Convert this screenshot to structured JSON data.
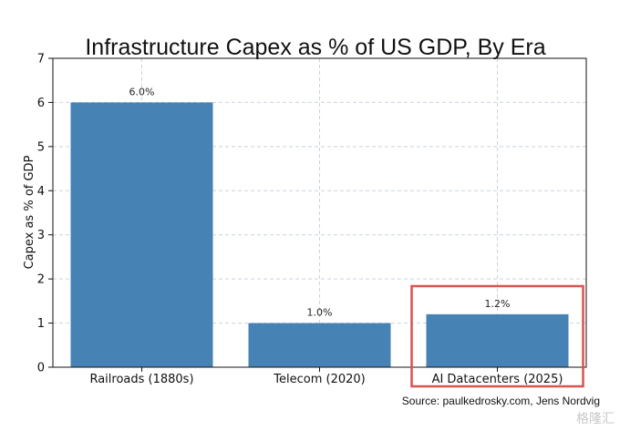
{
  "chart_data": {
    "type": "bar",
    "title": "Infrastructure Capex as % of US GDP, By Era",
    "ylabel": "Capex as % of GDP",
    "xlabel": "",
    "categories": [
      "Railroads (1880s)",
      "Telecom (2020)",
      "AI Datacenters (2025)"
    ],
    "values": [
      6.0,
      1.0,
      1.2
    ],
    "data_labels": [
      "6.0%",
      "1.0%",
      "1.2%"
    ],
    "ylim": [
      0,
      7
    ],
    "yticks": [
      0,
      1,
      2,
      3,
      4,
      5,
      6,
      7
    ],
    "grid": true,
    "bar_color": "#4682b4",
    "highlight": {
      "category": "AI Datacenters (2025)",
      "color": "#d9534f"
    }
  },
  "source": "Source: paulkedrosky.com, Jens Nordvig",
  "watermark": "格隆汇"
}
